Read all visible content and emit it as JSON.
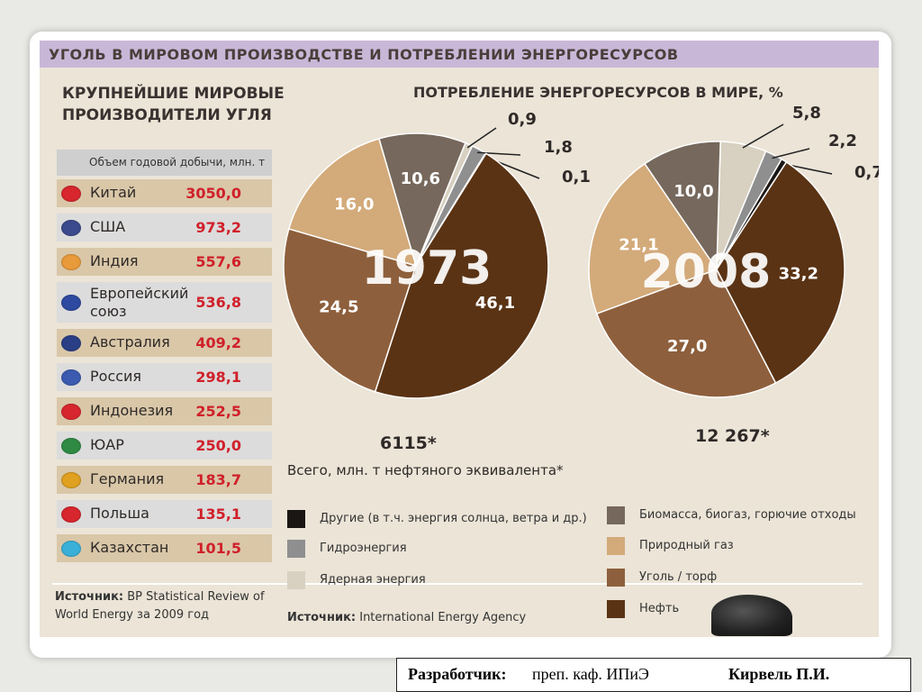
{
  "header": {
    "title": "УГОЛЬ В МИРОВОМ ПРОИЗВОДСТВЕ И ПОТРЕБЛЕНИИ ЭНЕРГОРЕСУРСОВ"
  },
  "producers": {
    "title_line1": "КРУПНЕЙШИЕ МИРОВЫЕ",
    "title_line2": "ПРОИЗВОДИТЕЛИ УГЛЯ",
    "column_header": "Объем годовой добычи, млн. т",
    "rows": [
      {
        "country": "Китай",
        "value": "3050,0",
        "flag": "#d8262e"
      },
      {
        "country": "США",
        "value": "973,2",
        "flag": "#3b4a8c"
      },
      {
        "country": "Индия",
        "value": "557,6",
        "flag": "#e99a3a"
      },
      {
        "country": "Европейский союз",
        "value": "536,8",
        "flag": "#2e4aa0"
      },
      {
        "country": "Австралия",
        "value": "409,2",
        "flag": "#2a3f86"
      },
      {
        "country": "Россия",
        "value": "298,1",
        "flag": "#3c5bb0"
      },
      {
        "country": "Индонезия",
        "value": "252,5",
        "flag": "#d8262e"
      },
      {
        "country": "ЮАР",
        "value": "250,0",
        "flag": "#2f8a44"
      },
      {
        "country": "Германия",
        "value": "183,7",
        "flag": "#e0a020"
      },
      {
        "country": "Польша",
        "value": "135,1",
        "flag": "#d8262e"
      },
      {
        "country": "Казахстан",
        "value": "101,5",
        "flag": "#3ab0d8"
      }
    ],
    "source_label": "Источник:",
    "source_text": "BP Statistical Review of World Energy за 2009 год"
  },
  "consumption": {
    "title": "ПОТРЕБЛЕНИЕ ЭНЕРГОРЕСУРСОВ В МИРЕ, %",
    "total_label": "Всего, млн. т нефтяного эквивалента*",
    "source_label": "Источник:",
    "source_text": "International Energy Agency"
  },
  "chart_data": [
    {
      "type": "pie",
      "title": "1973",
      "total": "6115*",
      "slices": [
        {
          "name": "Другие (в т.ч. энергия солнца, ветра и др.)",
          "value": 0.1,
          "label": "0,1"
        },
        {
          "name": "Гидроэнергия",
          "value": 1.8,
          "label": "1,8"
        },
        {
          "name": "Ядерная энергия",
          "value": 0.9,
          "label": "0,9"
        },
        {
          "name": "Биомасса, биогаз, горючие отходы",
          "value": 10.6,
          "label": "10,6"
        },
        {
          "name": "Природный газ",
          "value": 16.0,
          "label": "16,0"
        },
        {
          "name": "Уголь / торф",
          "value": 24.5,
          "label": "24,5"
        },
        {
          "name": "Нефть",
          "value": 46.1,
          "label": "46,1"
        }
      ]
    },
    {
      "type": "pie",
      "title": "2008",
      "total": "12 267*",
      "slices": [
        {
          "name": "Другие (в т.ч. энергия солнца, ветра и др.)",
          "value": 0.7,
          "label": "0,7"
        },
        {
          "name": "Гидроэнергия",
          "value": 2.2,
          "label": "2,2"
        },
        {
          "name": "Ядерная энергия",
          "value": 5.8,
          "label": "5,8"
        },
        {
          "name": "Биомасса, биогаз, горючие отходы",
          "value": 10.0,
          "label": "10,0"
        },
        {
          "name": "Природный газ",
          "value": 21.1,
          "label": "21,1"
        },
        {
          "name": "Уголь / торф",
          "value": 27.0,
          "label": "27,0"
        },
        {
          "name": "Нефть",
          "value": 33.2,
          "label": "33,2"
        }
      ]
    }
  ],
  "legend": [
    {
      "label": "Другие (в т.ч. энергия солнца, ветра и др.)",
      "color": "#1a1614"
    },
    {
      "label": "Гидроэнергия",
      "color": "#8f8f8f"
    },
    {
      "label": "Ядерная энергия",
      "color": "#d8d0c0"
    },
    {
      "label": "Биомасса, биогаз, горючие отходы",
      "color": "#76685c"
    },
    {
      "label": "Природный газ",
      "color": "#d3aa7a"
    },
    {
      "label": "Уголь / торф",
      "color": "#8e5f3c"
    },
    {
      "label": "Нефть",
      "color": "#5a3314"
    }
  ],
  "footer": {
    "label": "Разработчик:",
    "text": "преп. каф. ИПиЭ",
    "name": "Кирвель П.И."
  }
}
